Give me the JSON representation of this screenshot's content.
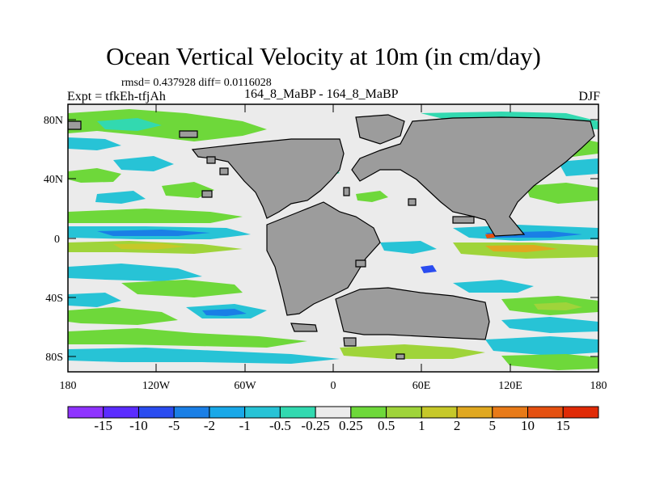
{
  "title": "Ocean Vertical Velocity at 10m (in cm/day)",
  "stats": "rmsd= 0.437928 diff= 0.0116028",
  "expt": "Expt = tfkEh-tfjAh",
  "run": "164_8_MaBP - 164_8_MaBP",
  "season": "DJF",
  "y_ticks": [
    "80N",
    "40N",
    "0",
    "40S",
    "80S"
  ],
  "x_ticks": [
    "180",
    "120W",
    "60W",
    "0",
    "60E",
    "120E",
    "180"
  ],
  "colorbar": {
    "labels": [
      "-15",
      "-10",
      "-5",
      "-2",
      "-1",
      "-0.5",
      "-0.25",
      "0.25",
      "0.5",
      "1",
      "2",
      "5",
      "10",
      "15"
    ],
    "colors": [
      "#8f33ff",
      "#5b2cff",
      "#2a4cf0",
      "#1a7fe6",
      "#19a8e8",
      "#27c3d6",
      "#32d9b0",
      "#ebebeb",
      "#6ed83a",
      "#9fd43a",
      "#c6c829",
      "#e0a820",
      "#e87a18",
      "#e55010",
      "#e02a06"
    ]
  },
  "land_color": "#9c9c9c",
  "ocean_color": "#ebebeb"
}
